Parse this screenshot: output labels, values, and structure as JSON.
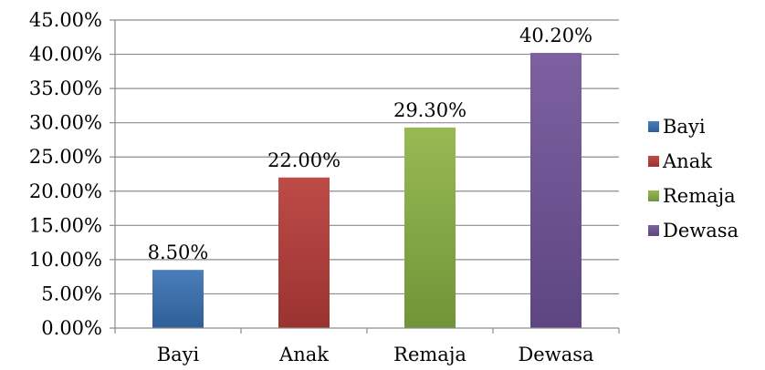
{
  "chart_data": {
    "type": "bar",
    "categories": [
      "Bayi",
      "Anak",
      "Remaja",
      "Dewasa"
    ],
    "values": [
      8.5,
      22.0,
      29.3,
      40.2
    ],
    "data_labels": [
      "8.50%",
      "22.00%",
      "29.30%",
      "40.20%"
    ],
    "ylim": [
      0,
      45
    ],
    "yticks": [
      0,
      5,
      10,
      15,
      20,
      25,
      30,
      35,
      40,
      45
    ],
    "ytick_labels": [
      "0.00%",
      "5.00%",
      "10.00%",
      "15.00%",
      "20.00%",
      "25.00%",
      "30.00%",
      "35.00%",
      "40.00%",
      "45.00%"
    ],
    "grid": true,
    "legend": {
      "placement": "right",
      "entries": [
        "Bayi",
        "Anak",
        "Remaja",
        "Dewasa"
      ]
    },
    "colors": [
      "#4a7ebb",
      "#be4b48",
      "#98b954",
      "#7d60a0"
    ],
    "colors_dark": [
      "#2f5f97",
      "#9a3330",
      "#729438",
      "#5d4682"
    ]
  }
}
